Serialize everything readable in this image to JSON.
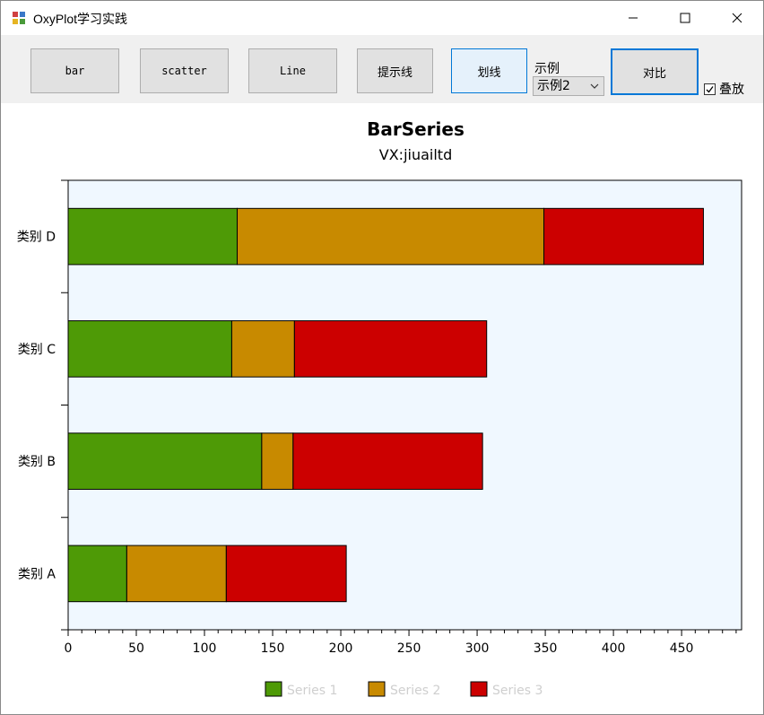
{
  "window": {
    "title": "OxyPlot学习实践",
    "minimize_glyph": "—",
    "maximize_glyph": "☐",
    "close_glyph": "✕"
  },
  "toolbar": {
    "bar_label": "bar",
    "scatter_label": "scatter",
    "line_label": "Line",
    "hint_line_label": "提示线",
    "draw_line_label": "划线",
    "example_label": "示例",
    "example_selected": "示例2",
    "compare_label": "对比",
    "stack_label": "叠放",
    "stack_checked": true
  },
  "chart_data": {
    "type": "bar",
    "orientation": "horizontal",
    "stacked": true,
    "title": "BarSeries",
    "subtitle": "VX:jiuailtd",
    "categories": [
      "类别 A",
      "类别 B",
      "类别 C",
      "类别 D"
    ],
    "series": [
      {
        "name": "Series 1",
        "color": "#4e9a06",
        "values": [
          43,
          142,
          120,
          124
        ]
      },
      {
        "name": "Series 2",
        "color": "#c88a00",
        "values": [
          73,
          23,
          46,
          225
        ]
      },
      {
        "name": "Series 3",
        "color": "#cc0000",
        "values": [
          88,
          139,
          141,
          117
        ]
      }
    ],
    "x_ticks": [
      0,
      50,
      100,
      150,
      200,
      250,
      300,
      350,
      400,
      450
    ],
    "xlim": [
      0,
      494
    ],
    "legend_position": "bottom",
    "plot_background": "#f0f8ff"
  }
}
